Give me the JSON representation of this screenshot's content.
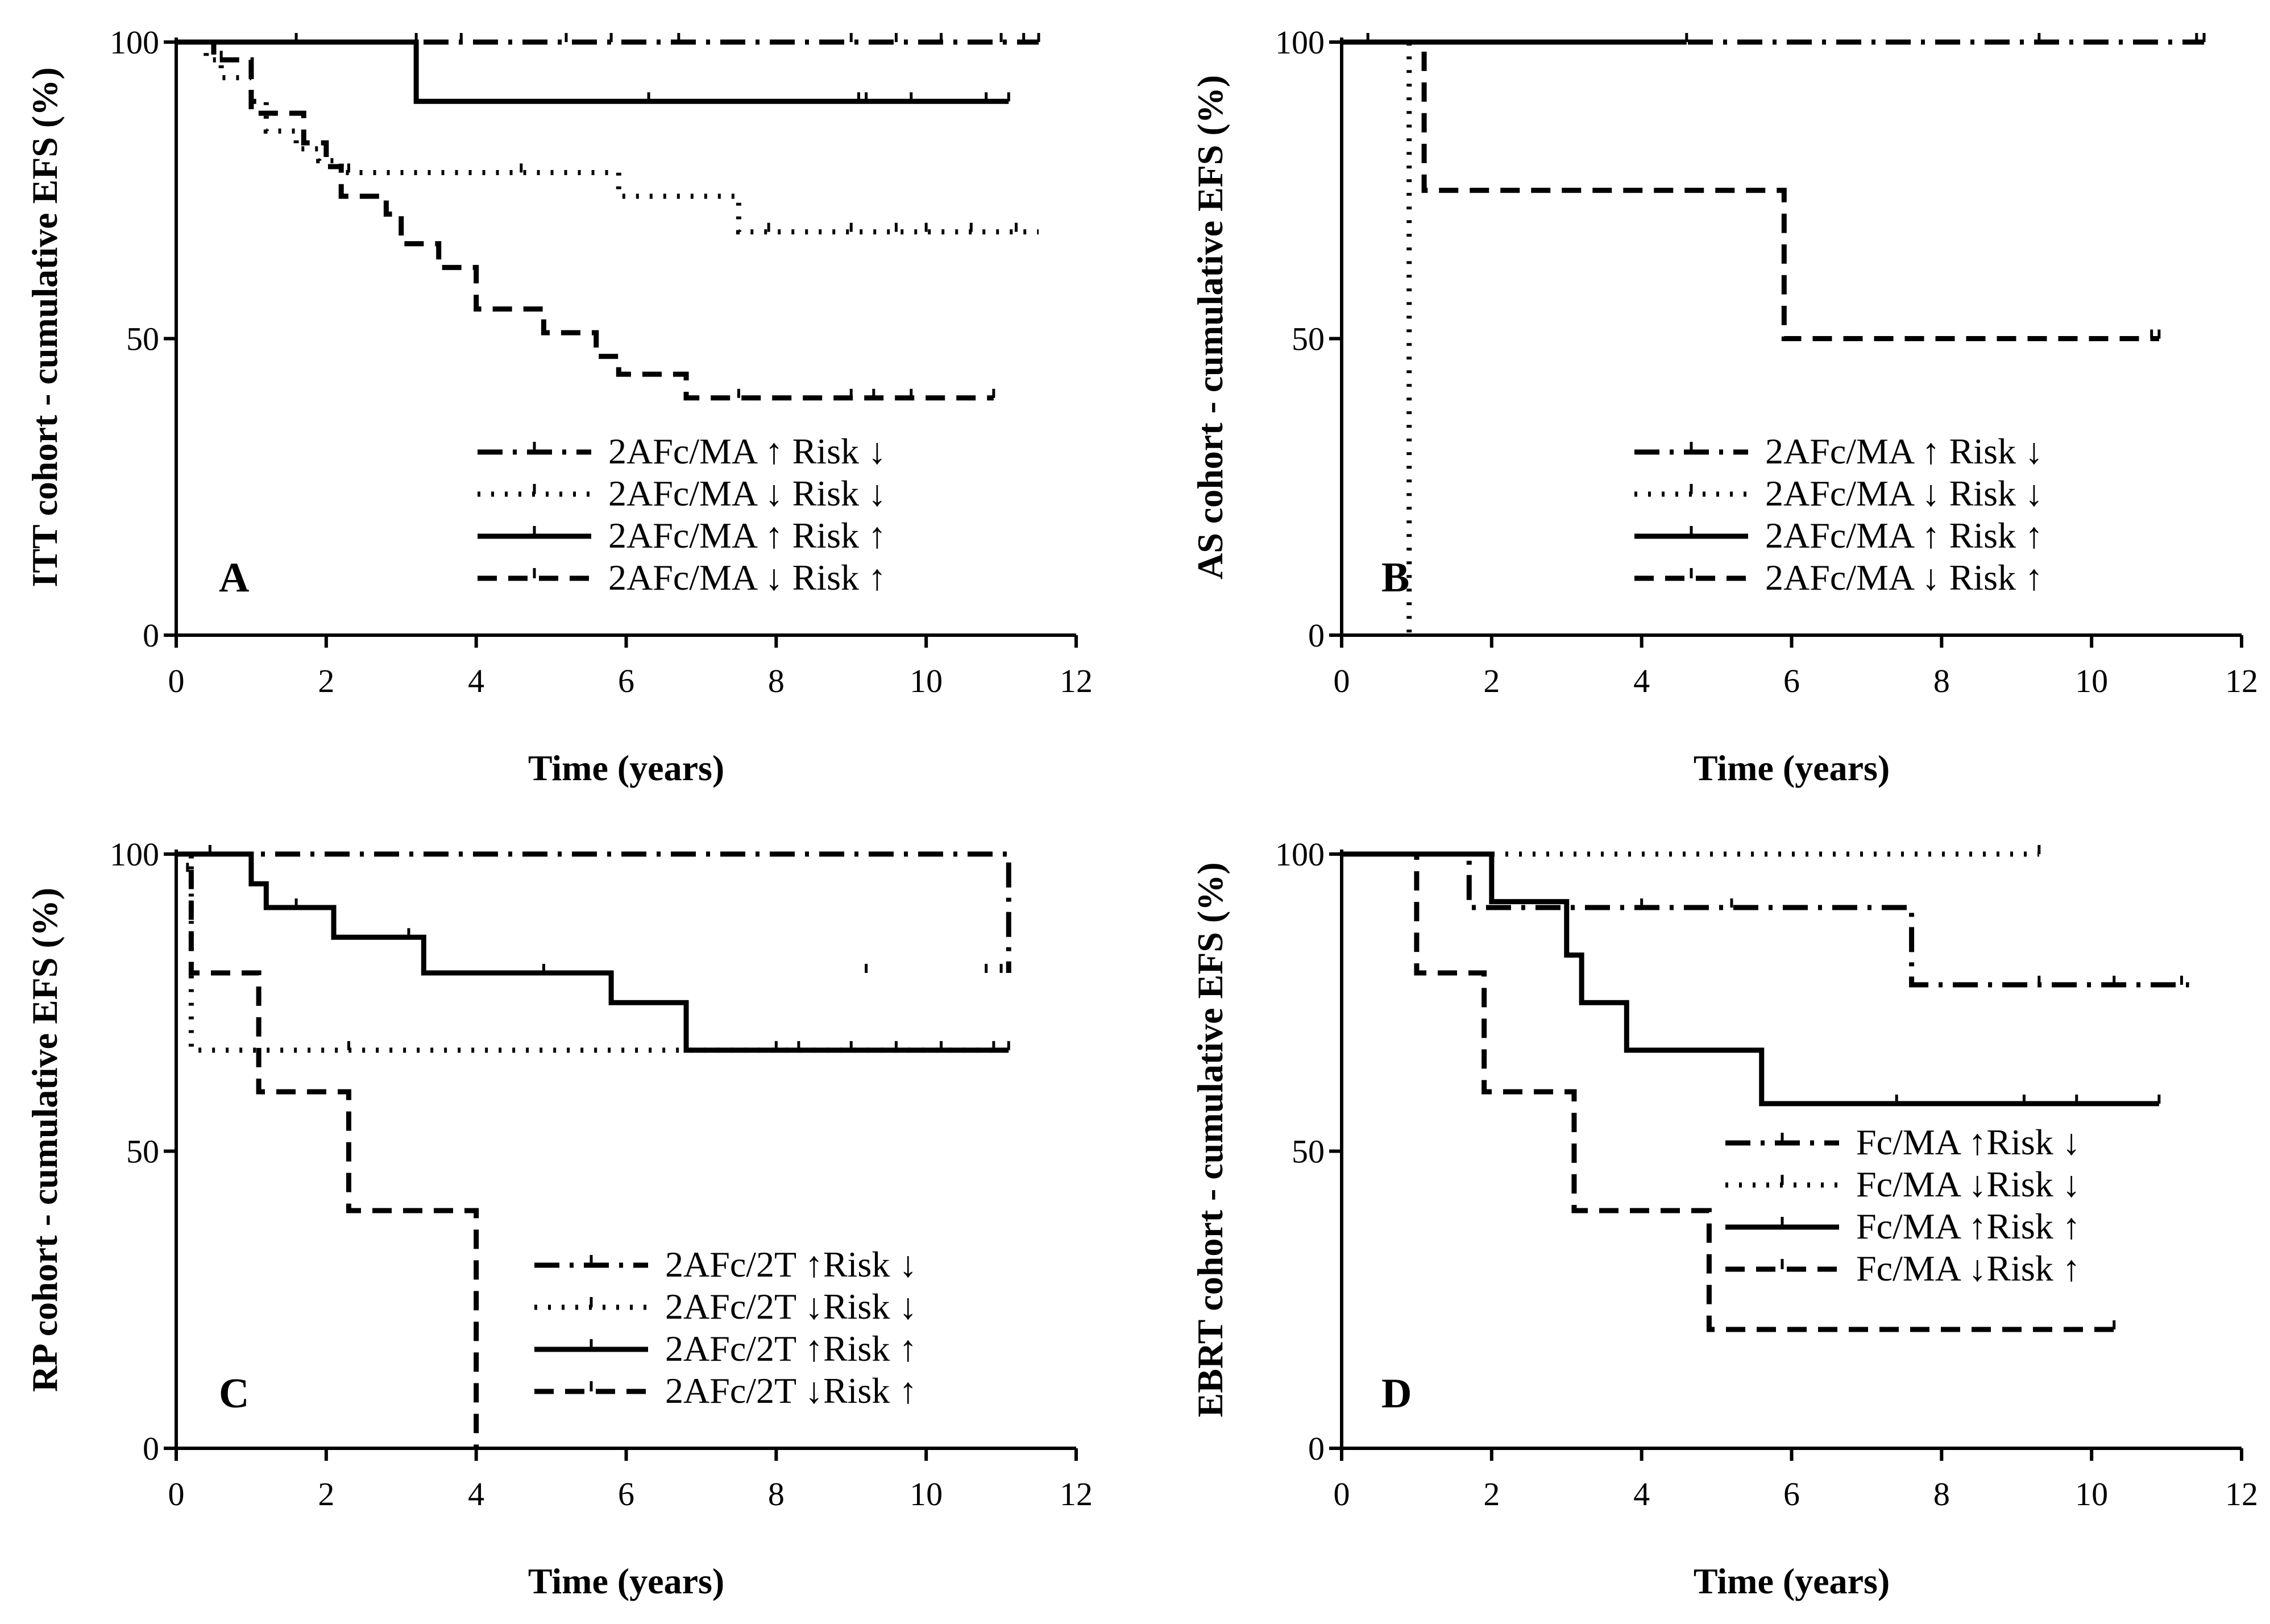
{
  "chart_data": [
    {
      "type": "line",
      "panel_label": "A",
      "ylabel": "ITT cohort - cumulative  EFS (%)",
      "xlabel": "Time (years)",
      "xlim": [
        0,
        12
      ],
      "ylim": [
        0,
        100
      ],
      "xticks": [
        0,
        2,
        4,
        6,
        8,
        10,
        12
      ],
      "yticks": [
        0,
        50,
        100
      ],
      "legend_position": "bottom-right",
      "series": [
        {
          "name": "2AFc/MA ↑  Risk ↓",
          "style": "dashdot",
          "x": [
            0,
            11.5
          ],
          "y": [
            100,
            100
          ],
          "censored": [
            [
              1.6,
              100
            ],
            [
              3.2,
              100
            ],
            [
              3.8,
              100
            ],
            [
              5.2,
              100
            ],
            [
              5.8,
              100
            ],
            [
              6.7,
              100
            ],
            [
              9.0,
              100
            ],
            [
              9.6,
              100
            ],
            [
              10.2,
              100
            ],
            [
              11.0,
              100
            ],
            [
              11.3,
              100
            ],
            [
              11.5,
              100
            ]
          ]
        },
        {
          "name": "2AFc/MA ↓  Risk ↓",
          "style": "dotted",
          "x": [
            0,
            0.4,
            0.6,
            1.0,
            1.2,
            1.6,
            1.9,
            2.2,
            5.9,
            7.5,
            11.5
          ],
          "y": [
            100,
            97,
            94,
            90,
            85,
            82,
            80,
            78,
            74,
            68,
            68
          ],
          "censored": [
            [
              2.3,
              78
            ],
            [
              4.6,
              78
            ],
            [
              7.9,
              68
            ],
            [
              9.0,
              68
            ],
            [
              9.6,
              68
            ],
            [
              10.0,
              68
            ],
            [
              10.6,
              68
            ],
            [
              11.2,
              68
            ]
          ]
        },
        {
          "name": "2AFc/MA ↑  Risk ↑",
          "style": "solid",
          "x": [
            0,
            3.2,
            11.1
          ],
          "y": [
            100,
            90,
            90
          ],
          "censored": [
            [
              6.3,
              90
            ],
            [
              9.1,
              90
            ],
            [
              9.2,
              90
            ],
            [
              9.8,
              90
            ],
            [
              10.8,
              90
            ],
            [
              11.1,
              90
            ]
          ]
        },
        {
          "name": "2AFc/MA ↓  Risk ↑",
          "style": "dashed",
          "x": [
            0,
            0.5,
            1.0,
            1.7,
            2.0,
            2.2,
            2.8,
            3.0,
            3.5,
            4.0,
            4.9,
            5.6,
            5.9,
            6.8,
            10.9
          ],
          "y": [
            100,
            97,
            88,
            83,
            79,
            74,
            71,
            66,
            62,
            55,
            51,
            47,
            44,
            40,
            40
          ],
          "censored": [
            [
              0.6,
              97
            ],
            [
              7.5,
              40
            ],
            [
              9.0,
              40
            ],
            [
              9.3,
              40
            ],
            [
              9.8,
              40
            ],
            [
              10.9,
              40
            ]
          ]
        }
      ]
    },
    {
      "type": "line",
      "panel_label": "B",
      "ylabel": "AS cohort - cumulative  EFS (%)",
      "xlabel": "Time (years)",
      "xlim": [
        0,
        12
      ],
      "ylim": [
        0,
        100
      ],
      "xticks": [
        0,
        2,
        4,
        6,
        8,
        10,
        12
      ],
      "yticks": [
        0,
        50,
        100
      ],
      "legend_position": "bottom-right",
      "series": [
        {
          "name": "2AFc/MA ↑  Risk ↓",
          "style": "dashdot",
          "x": [
            0,
            11.5
          ],
          "y": [
            100,
            100
          ],
          "censored": [
            [
              9.3,
              100
            ],
            [
              11.4,
              100
            ],
            [
              11.5,
              100
            ]
          ]
        },
        {
          "name": "2AFc/MA ↓  Risk ↓",
          "style": "dotted",
          "x": [
            0,
            0.9,
            0.9
          ],
          "y": [
            100,
            100,
            0
          ],
          "censored": []
        },
        {
          "name": "2AFc/MA ↑  Risk ↑",
          "style": "solid",
          "x": [
            0,
            4.6
          ],
          "y": [
            100,
            100
          ],
          "censored": [
            [
              0.35,
              100
            ],
            [
              4.6,
              100
            ]
          ]
        },
        {
          "name": "2AFc/MA ↓  Risk ↑",
          "style": "dashed",
          "x": [
            0,
            1.1,
            5.9,
            10.9
          ],
          "y": [
            100,
            75,
            50,
            50
          ],
          "censored": [
            [
              10.8,
              50
            ],
            [
              10.9,
              50
            ]
          ]
        }
      ]
    },
    {
      "type": "line",
      "panel_label": "C",
      "ylabel": "RP cohort - cumulative  EFS (%)",
      "xlabel": "Time (years)",
      "xlim": [
        0,
        12
      ],
      "ylim": [
        0,
        100
      ],
      "xticks": [
        0,
        2,
        4,
        6,
        8,
        10,
        12
      ],
      "yticks": [
        0,
        50,
        100
      ],
      "legend_position": "bottom-right",
      "series": [
        {
          "name": "2AFc/2T ↑Risk ↓",
          "style": "dashdot",
          "x": [
            0,
            0.6,
            11.1
          ],
          "y": [
            100,
            100,
            80
          ],
          "censored": [
            [
              0.45,
              100
            ],
            [
              9.2,
              80
            ],
            [
              10.8,
              80
            ],
            [
              11.0,
              80
            ]
          ]
        },
        {
          "name": "2AFc/2T ↓Risk ↓",
          "style": "dotted",
          "x": [
            0,
            0.2,
            11.1
          ],
          "y": [
            100,
            67,
            67
          ],
          "censored": [
            [
              2.3,
              67
            ],
            [
              8.0,
              67
            ],
            [
              10.9,
              67
            ]
          ]
        },
        {
          "name": "2AFc/2T ↑Risk ↑",
          "style": "solid",
          "x": [
            0,
            1.0,
            1.2,
            2.1,
            3.3,
            5.8,
            6.8,
            11.1
          ],
          "y": [
            100,
            95,
            91,
            86,
            80,
            75,
            67,
            67
          ],
          "censored": [
            [
              1.6,
              91
            ],
            [
              3.1,
              86
            ],
            [
              4.9,
              80
            ],
            [
              8.3,
              67
            ],
            [
              9.0,
              67
            ],
            [
              9.6,
              67
            ],
            [
              10.2,
              67
            ],
            [
              11.1,
              67
            ]
          ]
        },
        {
          "name": "2AFc/2T ↓Risk ↑",
          "style": "dashed",
          "x": [
            0,
            0.2,
            1.1,
            2.3,
            4.0,
            4.0
          ],
          "y": [
            100,
            80,
            60,
            40,
            40,
            0
          ],
          "censored": [
            [
              0.15,
              97
            ]
          ]
        }
      ]
    },
    {
      "type": "line",
      "panel_label": "D",
      "ylabel": "EBRT cohort - cumulative  EFS (%)",
      "xlabel": "Time (years)",
      "xlim": [
        0,
        12
      ],
      "ylim": [
        0,
        100
      ],
      "xticks": [
        0,
        2,
        4,
        6,
        8,
        10,
        12
      ],
      "yticks": [
        0,
        50,
        100
      ],
      "legend_position": "bottom-right",
      "series": [
        {
          "name": "Fc/MA ↑Risk ↓",
          "style": "dashdot",
          "x": [
            0,
            1.7,
            7.6,
            11.3
          ],
          "y": [
            100,
            91,
            78,
            78
          ],
          "censored": [
            [
              4.0,
              91
            ],
            [
              5.2,
              91
            ],
            [
              9.3,
              78
            ],
            [
              10.3,
              78
            ],
            [
              11.2,
              78
            ]
          ]
        },
        {
          "name": "Fc/MA ↓Risk ↓",
          "style": "dotted",
          "x": [
            0,
            9.3
          ],
          "y": [
            100,
            100
          ],
          "censored": [
            [
              9.3,
              100
            ]
          ]
        },
        {
          "name": "Fc/MA ↑Risk ↑",
          "style": "solid",
          "x": [
            0,
            2.0,
            3.0,
            3.2,
            3.8,
            5.6,
            10.9
          ],
          "y": [
            100,
            92,
            83,
            75,
            67,
            58,
            58
          ],
          "censored": [
            [
              7.4,
              58
            ],
            [
              9.1,
              58
            ],
            [
              9.8,
              58
            ],
            [
              10.9,
              58
            ]
          ]
        },
        {
          "name": "Fc/MA ↓Risk ↑",
          "style": "dashed",
          "x": [
            0,
            1.0,
            1.9,
            3.1,
            4.9,
            10.3
          ],
          "y": [
            100,
            80,
            60,
            40,
            20,
            20
          ],
          "censored": [
            [
              10.3,
              20
            ]
          ]
        }
      ]
    }
  ]
}
